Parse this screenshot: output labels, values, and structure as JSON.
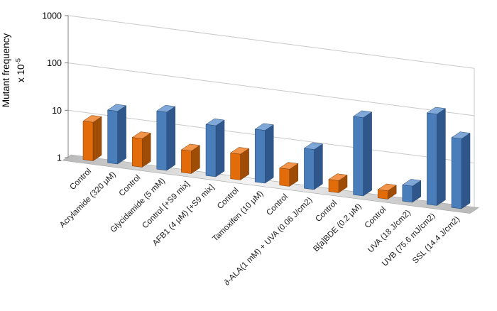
{
  "chart_data": {
    "type": "bar",
    "style": "3d-column",
    "title": "",
    "ylabel_line1": "Mutant frequency",
    "ylabel_line2": "x 10",
    "ylabel_exponent": "-5",
    "yscale": "log",
    "ylim": [
      1,
      1000
    ],
    "y_ticks": [
      1,
      10,
      100,
      1000
    ],
    "grid": true,
    "legend": "none",
    "bars": [
      {
        "label": "Control",
        "value": 6.5,
        "series": "control"
      },
      {
        "label": "Acrylamide (320 μM)",
        "value": 13,
        "series": "treatment"
      },
      {
        "label": "Control",
        "value": 4,
        "series": "control"
      },
      {
        "label": "Glycidamide (5 mM)",
        "value": 17,
        "series": "treatment"
      },
      {
        "label": "Control [+S9 mix]",
        "value": 3,
        "series": "control"
      },
      {
        "label": "AFB1 (4 μM) [+S9 mix]",
        "value": 12,
        "series": "treatment"
      },
      {
        "label": "Control",
        "value": 3.5,
        "series": "control"
      },
      {
        "label": "Tamoxifen (10 μM)",
        "value": 13,
        "series": "treatment"
      },
      {
        "label": "Control",
        "value": 2.3,
        "series": "control"
      },
      {
        "label": "∂-ALA(1 mM) + UVA (0.06 J/cm2)",
        "value": 7,
        "series": "treatment"
      },
      {
        "label": "Control",
        "value": 1.8,
        "series": "control"
      },
      {
        "label": "B[a]BDE (0.2 μM)",
        "value": 45,
        "series": "treatment"
      },
      {
        "label": "Control",
        "value": 1.5,
        "series": "control"
      },
      {
        "label": "UVA (18 J/cm2)",
        "value": 2.2,
        "series": "treatment"
      },
      {
        "label": "UVB (75.6 mJ/cm2)",
        "value": 85,
        "series": "treatment"
      },
      {
        "label": "SSL (14.4 J/cm2)",
        "value": 30,
        "series": "treatment"
      }
    ],
    "colors": {
      "control": {
        "front": "#E36C0A",
        "top": "#F2954A",
        "side": "#9E4C06",
        "stroke": "#7A3B05"
      },
      "treatment": {
        "front": "#4A7EBB",
        "top": "#7FA8D9",
        "side": "#2F578B",
        "stroke": "#27486F"
      },
      "gridline": "#c9c9c9",
      "axis": "#808080",
      "floor_dark": "#b8b8b8",
      "floor_light": "#f4f4f4"
    }
  }
}
